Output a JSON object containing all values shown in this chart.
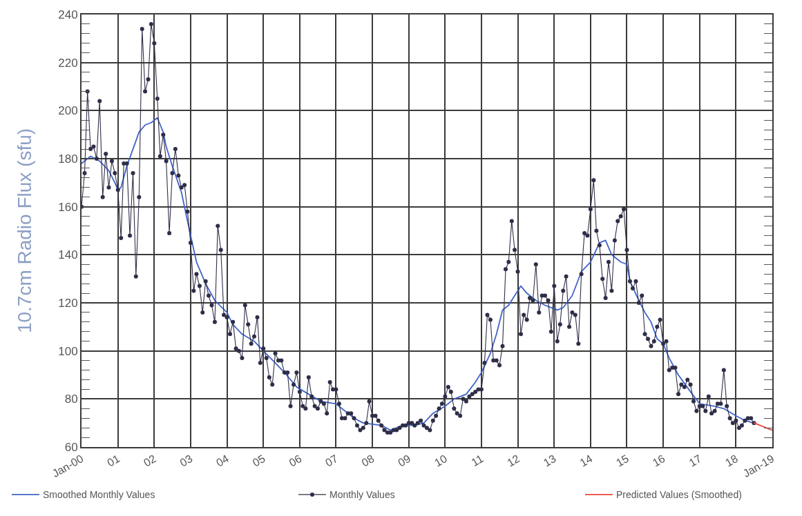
{
  "chart_data": {
    "type": "line",
    "ylabel": "10.7cm Radio Flux (sfu)",
    "xlim": [
      "2000-01",
      "2019-01"
    ],
    "xticks": [
      {
        "value": "2000-01",
        "label": "Jan-00"
      },
      {
        "value": "2001-01",
        "label": "01"
      },
      {
        "value": "2002-01",
        "label": "02"
      },
      {
        "value": "2003-01",
        "label": "03"
      },
      {
        "value": "2004-01",
        "label": "04"
      },
      {
        "value": "2005-01",
        "label": "05"
      },
      {
        "value": "2006-01",
        "label": "06"
      },
      {
        "value": "2007-01",
        "label": "07"
      },
      {
        "value": "2008-01",
        "label": "08"
      },
      {
        "value": "2009-01",
        "label": "09"
      },
      {
        "value": "2010-01",
        "label": "10"
      },
      {
        "value": "2011-01",
        "label": "11"
      },
      {
        "value": "2012-01",
        "label": "12"
      },
      {
        "value": "2013-01",
        "label": "13"
      },
      {
        "value": "2014-01",
        "label": "14"
      },
      {
        "value": "2015-01",
        "label": "15"
      },
      {
        "value": "2016-01",
        "label": "16"
      },
      {
        "value": "2017-01",
        "label": "17"
      },
      {
        "value": "2018-01",
        "label": "18"
      },
      {
        "value": "2019-01",
        "label": "Jan-19"
      }
    ],
    "ylim": [
      60,
      240
    ],
    "yticks": [
      60,
      {
        "value": 64,
        "label": null
      },
      {
        "value": 68,
        "label": null
      },
      {
        "value": 72,
        "label": null
      },
      {
        "value": 76,
        "label": null
      },
      80,
      {
        "value": 84,
        "label": null
      },
      {
        "value": 88,
        "label": null
      },
      {
        "value": 92,
        "label": null
      },
      {
        "value": 96,
        "label": null
      },
      100,
      {
        "value": 104,
        "label": null
      },
      {
        "value": 108,
        "label": null
      },
      {
        "value": 112,
        "label": null
      },
      {
        "value": 116,
        "label": null
      },
      120,
      {
        "value": 124,
        "label": null
      },
      {
        "value": 128,
        "label": null
      },
      {
        "value": 132,
        "label": null
      },
      {
        "value": 136,
        "label": null
      },
      140,
      {
        "value": 144,
        "label": null
      },
      {
        "value": 148,
        "label": null
      },
      {
        "value": 152,
        "label": null
      },
      {
        "value": 156,
        "label": null
      },
      160,
      {
        "value": 164,
        "label": null
      },
      {
        "value": 168,
        "label": null
      },
      {
        "value": 172,
        "label": null
      },
      {
        "value": 176,
        "label": null
      },
      180,
      {
        "value": 184,
        "label": null
      },
      {
        "value": 188,
        "label": null
      },
      {
        "value": 192,
        "label": null
      },
      {
        "value": 196,
        "label": null
      },
      200,
      {
        "value": 204,
        "label": null
      },
      {
        "value": 208,
        "label": null
      },
      {
        "value": 212,
        "label": null
      },
      {
        "value": 216,
        "label": null
      },
      220,
      {
        "value": 224,
        "label": null
      },
      {
        "value": 228,
        "label": null
      },
      {
        "value": 232,
        "label": null
      },
      {
        "value": 236,
        "label": null
      },
      240
    ],
    "grid": true,
    "legend": "bottom",
    "series": [
      {
        "name": "Smoothed Monthly Values",
        "color": "#3f63c8",
        "x": [
          "2000-01",
          "2000-04",
          "2000-07",
          "2000-10",
          "2000-12",
          "2001-01",
          "2001-02",
          "2001-04",
          "2001-06",
          "2001-08",
          "2001-10",
          "2001-12",
          "2002-02",
          "2002-04",
          "2002-05",
          "2002-07",
          "2002-10",
          "2002-12",
          "2003-01",
          "2003-03",
          "2003-06",
          "2003-09",
          "2004-01",
          "2004-03",
          "2004-06",
          "2004-10",
          "2005-01",
          "2005-05",
          "2005-08",
          "2005-12",
          "2006-04",
          "2006-08",
          "2007-01",
          "2007-03",
          "2007-07",
          "2007-10",
          "2008-04",
          "2008-07",
          "2008-11",
          "2009-03",
          "2009-06",
          "2009-09",
          "2010-01",
          "2010-04",
          "2010-08",
          "2010-11",
          "2011-01",
          "2011-04",
          "2011-06",
          "2011-08",
          "2011-10",
          "2011-12",
          "2012-02",
          "2012-04",
          "2012-07",
          "2012-10",
          "2013-02",
          "2013-04",
          "2013-07",
          "2013-10",
          "2014-01",
          "2014-04",
          "2014-06",
          "2014-08",
          "2014-11",
          "2015-01",
          "2015-02",
          "2015-05",
          "2015-07",
          "2015-09",
          "2015-11",
          "2016-01",
          "2016-03",
          "2016-06",
          "2016-10",
          "2017-01",
          "2017-06",
          "2017-09",
          "2018-01",
          "2018-04",
          "2018-07"
        ],
        "values": [
          178,
          181,
          179,
          175,
          170,
          167,
          168,
          177,
          184,
          191,
          194,
          195,
          197,
          191,
          185,
          177,
          166,
          154,
          148,
          137,
          128,
          121,
          116,
          111,
          107,
          104,
          100,
          95,
          91,
          85,
          82,
          79,
          78,
          76,
          72,
          70,
          69,
          67,
          69,
          69,
          70,
          74,
          77,
          80,
          82,
          87,
          91,
          99,
          107,
          117,
          119,
          123,
          127,
          124,
          121,
          119,
          117,
          118,
          123,
          133,
          137,
          145,
          146,
          140,
          137,
          136,
          129,
          121,
          116,
          112,
          105,
          103,
          97,
          90,
          83,
          78,
          77,
          76,
          73,
          71,
          70
        ]
      },
      {
        "name": "Monthly Values",
        "color": "#2e2e48",
        "marker": "circle",
        "x": [
          "2000-01",
          "2000-02",
          "2000-03",
          "2000-04",
          "2000-05",
          "2000-06",
          "2000-07",
          "2000-08",
          "2000-09",
          "2000-10",
          "2000-11",
          "2000-12",
          "2001-01",
          "2001-02",
          "2001-03",
          "2001-04",
          "2001-05",
          "2001-06",
          "2001-07",
          "2001-08",
          "2001-09",
          "2001-10",
          "2001-11",
          "2001-12",
          "2002-01",
          "2002-02",
          "2002-03",
          "2002-04",
          "2002-05",
          "2002-06",
          "2002-07",
          "2002-08",
          "2002-09",
          "2002-10",
          "2002-11",
          "2002-12",
          "2003-01",
          "2003-02",
          "2003-03",
          "2003-04",
          "2003-05",
          "2003-06",
          "2003-07",
          "2003-08",
          "2003-09",
          "2003-10",
          "2003-11",
          "2003-12",
          "2004-01",
          "2004-02",
          "2004-03",
          "2004-04",
          "2004-05",
          "2004-06",
          "2004-07",
          "2004-08",
          "2004-09",
          "2004-10",
          "2004-11",
          "2004-12",
          "2005-01",
          "2005-02",
          "2005-03",
          "2005-04",
          "2005-05",
          "2005-06",
          "2005-07",
          "2005-08",
          "2005-09",
          "2005-10",
          "2005-11",
          "2005-12",
          "2006-01",
          "2006-02",
          "2006-03",
          "2006-04",
          "2006-05",
          "2006-06",
          "2006-07",
          "2006-08",
          "2006-09",
          "2006-10",
          "2006-11",
          "2006-12",
          "2007-01",
          "2007-02",
          "2007-03",
          "2007-04",
          "2007-05",
          "2007-06",
          "2007-07",
          "2007-08",
          "2007-09",
          "2007-10",
          "2007-11",
          "2007-12",
          "2008-01",
          "2008-02",
          "2008-03",
          "2008-04",
          "2008-05",
          "2008-06",
          "2008-07",
          "2008-08",
          "2008-09",
          "2008-10",
          "2008-11",
          "2008-12",
          "2009-01",
          "2009-02",
          "2009-03",
          "2009-04",
          "2009-05",
          "2009-06",
          "2009-07",
          "2009-08",
          "2009-09",
          "2009-10",
          "2009-11",
          "2009-12",
          "2010-01",
          "2010-02",
          "2010-03",
          "2010-04",
          "2010-05",
          "2010-06",
          "2010-07",
          "2010-08",
          "2010-09",
          "2010-10",
          "2010-11",
          "2010-12",
          "2011-01",
          "2011-02",
          "2011-03",
          "2011-04",
          "2011-05",
          "2011-06",
          "2011-07",
          "2011-08",
          "2011-09",
          "2011-10",
          "2011-11",
          "2011-12",
          "2012-01",
          "2012-02",
          "2012-03",
          "2012-04",
          "2012-05",
          "2012-06",
          "2012-07",
          "2012-08",
          "2012-09",
          "2012-10",
          "2012-11",
          "2012-12",
          "2013-01",
          "2013-02",
          "2013-03",
          "2013-04",
          "2013-05",
          "2013-06",
          "2013-07",
          "2013-08",
          "2013-09",
          "2013-10",
          "2013-11",
          "2013-12",
          "2014-01",
          "2014-02",
          "2014-03",
          "2014-04",
          "2014-05",
          "2014-06",
          "2014-07",
          "2014-08",
          "2014-09",
          "2014-10",
          "2014-11",
          "2014-12",
          "2015-01",
          "2015-02",
          "2015-03",
          "2015-04",
          "2015-05",
          "2015-06",
          "2015-07",
          "2015-08",
          "2015-09",
          "2015-10",
          "2015-11",
          "2015-12",
          "2016-01",
          "2016-02",
          "2016-03",
          "2016-04",
          "2016-05",
          "2016-06",
          "2016-07",
          "2016-08",
          "2016-09",
          "2016-10",
          "2016-11",
          "2016-12",
          "2017-01",
          "2017-02",
          "2017-03",
          "2017-04",
          "2017-05",
          "2017-06",
          "2017-07",
          "2017-08",
          "2017-09",
          "2017-10",
          "2017-11",
          "2017-12",
          "2018-01",
          "2018-02",
          "2018-03",
          "2018-04",
          "2018-05",
          "2018-06",
          "2018-07"
        ],
        "values": [
          160,
          174,
          208,
          184,
          185,
          180,
          204,
          164,
          182,
          168,
          179,
          174,
          167,
          147,
          178,
          178,
          148,
          174,
          131,
          164,
          234,
          208,
          213,
          236,
          228,
          205,
          181,
          190,
          179,
          149,
          174,
          184,
          173,
          168,
          169,
          158,
          145,
          125,
          132,
          127,
          116,
          129,
          123,
          119,
          112,
          152,
          142,
          115,
          114,
          107,
          112,
          101,
          100,
          97,
          119,
          111,
          103,
          106,
          114,
          95,
          101,
          97,
          89,
          86,
          99,
          96,
          96,
          91,
          91,
          77,
          86,
          91,
          83,
          77,
          76,
          89,
          81,
          77,
          76,
          79,
          78,
          74,
          87,
          84,
          84,
          78,
          72,
          72,
          74,
          74,
          72,
          69,
          67,
          68,
          70,
          79,
          73,
          73,
          71,
          69,
          67,
          66,
          66,
          67,
          67,
          68,
          69,
          69,
          70,
          70,
          69,
          70,
          71,
          69,
          68,
          67,
          71,
          73,
          76,
          78,
          81,
          85,
          83,
          76,
          74,
          73,
          80,
          79,
          81,
          82,
          83,
          84,
          84,
          95,
          115,
          113,
          96,
          96,
          94,
          102,
          134,
          137,
          154,
          142,
          133,
          107,
          115,
          113,
          122,
          121,
          136,
          116,
          123,
          123,
          121,
          108,
          127,
          104,
          111,
          125,
          131,
          110,
          116,
          115,
          103,
          132,
          149,
          148,
          159,
          171,
          150,
          144,
          130,
          122,
          137,
          125,
          146,
          154,
          156,
          159,
          142,
          129,
          126,
          129,
          120,
          123,
          107,
          105,
          102,
          104,
          110,
          113,
          103,
          104,
          92,
          93,
          93,
          82,
          86,
          85,
          88,
          86,
          79,
          75,
          77,
          77,
          75,
          81,
          74,
          75,
          78,
          78,
          92,
          77,
          72,
          70,
          71,
          68,
          69,
          71,
          72,
          72,
          70
        ]
      },
      {
        "name": "Predicted Values (Smoothed)",
        "color": "#e8463c",
        "x": [
          "2018-07",
          "2019-01"
        ],
        "values": [
          70,
          67
        ]
      }
    ]
  }
}
